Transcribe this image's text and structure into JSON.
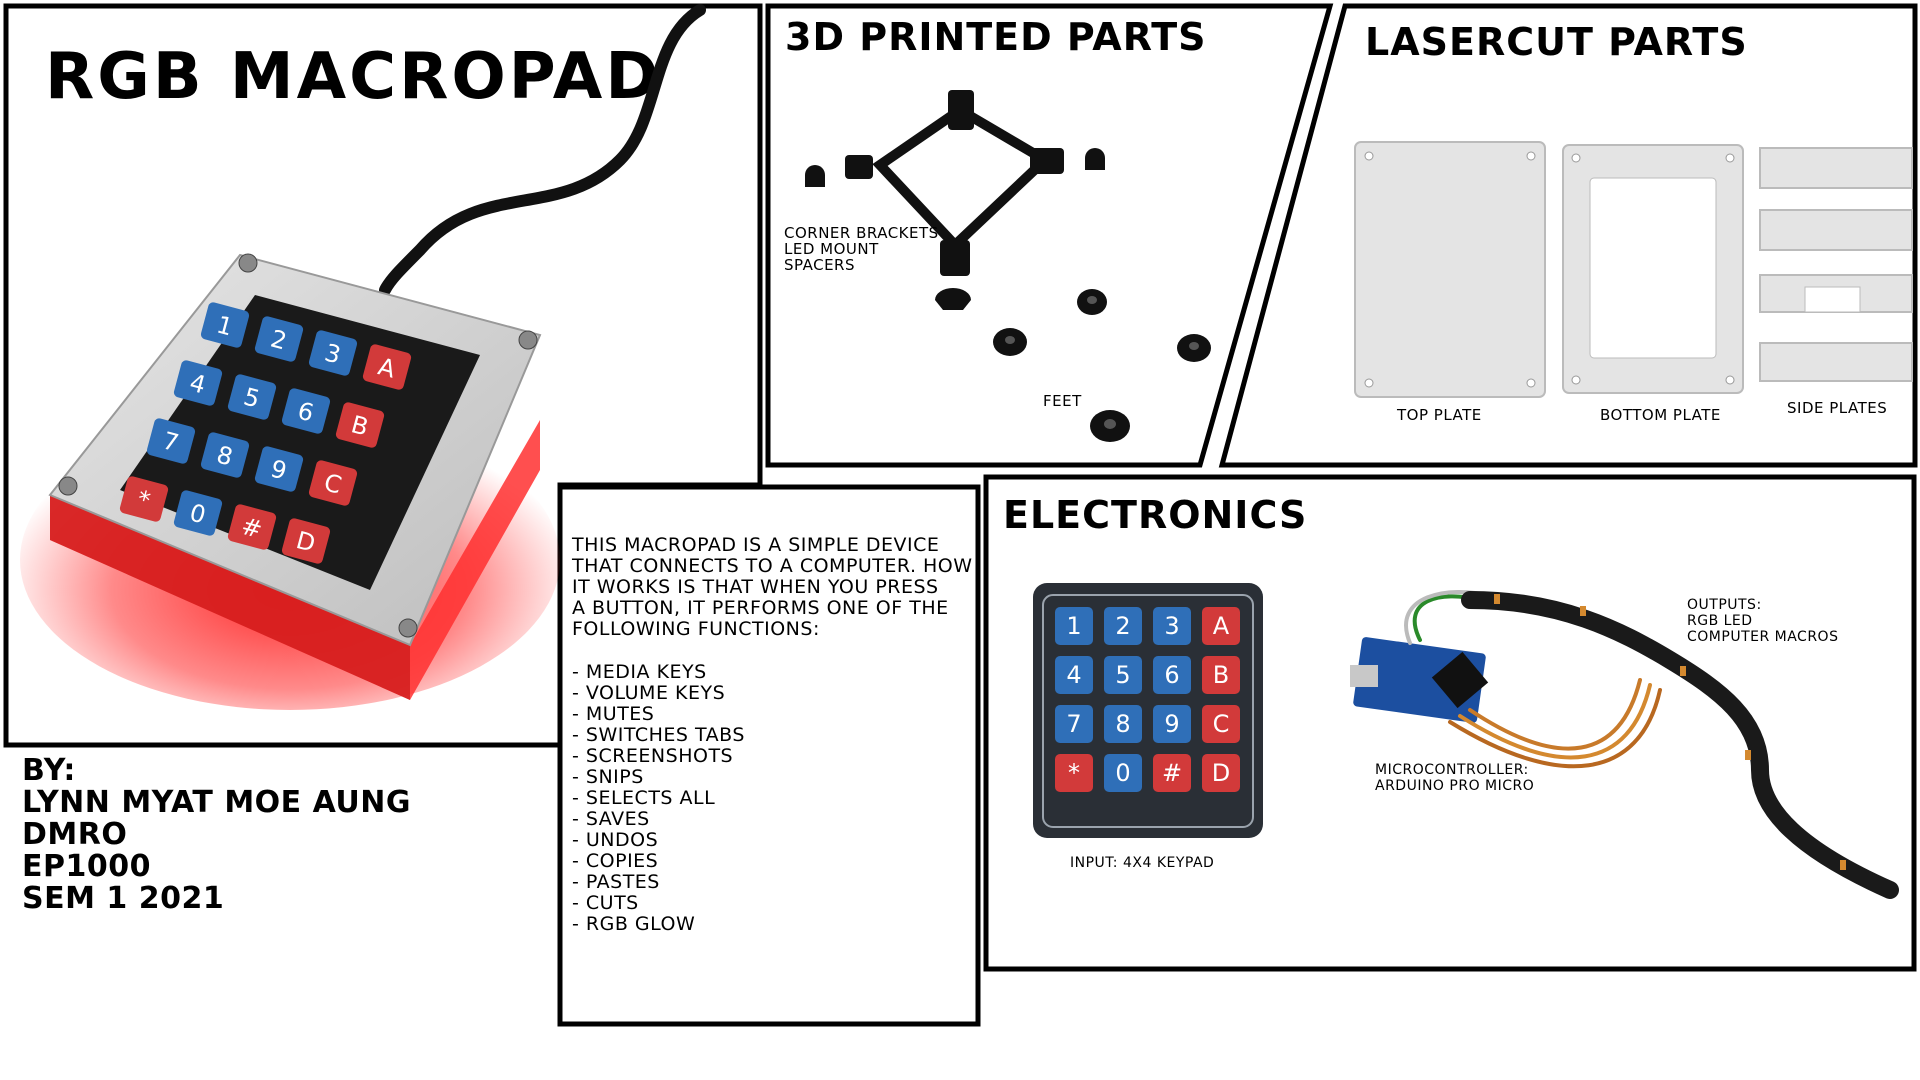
{
  "macropad": {
    "title": "RGB MACROPAD",
    "keys": [
      "1",
      "2",
      "3",
      "A",
      "4",
      "5",
      "6",
      "B",
      "7",
      "8",
      "9",
      "C",
      "*",
      "0",
      "#",
      "D"
    ]
  },
  "printed": {
    "title": "3D PRINTED PARTS",
    "label_brackets": [
      "CORNER BRACKETS",
      "LED MOUNT",
      "SPACERS"
    ],
    "label_feet": "FEET"
  },
  "lasercut": {
    "title": "LASERCUT PARTS",
    "top_plate": "TOP PLATE",
    "bottom_plate": "BOTTOM PLATE",
    "side_plates": "SIDE PLATES"
  },
  "description": {
    "intro": [
      "THIS MACROPAD IS A SIMPLE DEVICE",
      "THAT CONNECTS TO A COMPUTER. HOW",
      "IT  WORKS IS THAT WHEN YOU PRESS",
      "A BUTTON, IT PERFORMS ONE OF THE",
      "FOLLOWING FUNCTIONS:"
    ],
    "functions": [
      "- MEDIA KEYS",
      "- VOLUME KEYS",
      "- MUTES",
      "- SWITCHES TABS",
      "- SCREENSHOTS",
      "- SNIPS",
      "- SELECTS ALL",
      "- SAVES",
      "- UNDOS",
      "- COPIES",
      "- PASTES",
      "- CUTS",
      "- RGB GLOW"
    ]
  },
  "electronics": {
    "title": "ELECTRONICS",
    "keypad_caption": "INPUT: 4X4 KEYPAD",
    "keypad_keys": [
      "1",
      "2",
      "3",
      "A",
      "4",
      "5",
      "6",
      "B",
      "7",
      "8",
      "9",
      "C",
      "*",
      "0",
      "#",
      "D"
    ],
    "micro_caption": [
      "MICROCONTROLLER:",
      "ARDUINO PRO MICRO"
    ],
    "outputs_caption": [
      "OUTPUTS:",
      "RGB LED",
      "COMPUTER MACROS"
    ]
  },
  "credits": {
    "lines": [
      "BY:",
      "LYNN MYAT MOE AUNG",
      "DMRO",
      "EP1000",
      "SEM 1 2021"
    ]
  },
  "colors": {
    "key_blue": "#2f6fb8",
    "key_red": "#d23a3a",
    "glow": "#ff2020",
    "panel_border": "#000000"
  }
}
